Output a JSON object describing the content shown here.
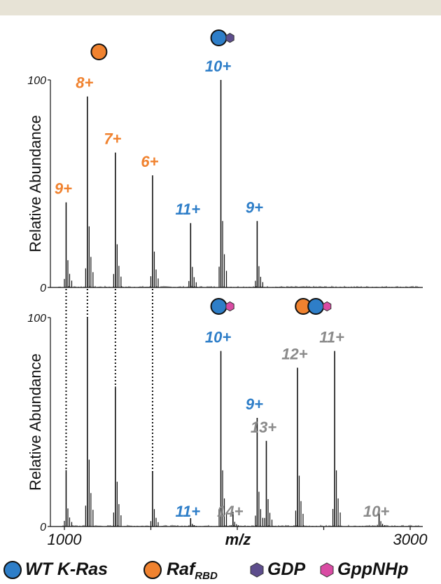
{
  "colors": {
    "wt_kras": "#2e7ec8",
    "raf_rbd": "#f0822f",
    "gdp": "#5d4d8c",
    "gppnhp": "#d94ba3",
    "complex_label": "#8a8a8a",
    "spectrum": "#111111"
  },
  "icons": [
    "wt-kras-circle-icon",
    "raf-rbd-circle-icon",
    "gdp-hexagon-icon",
    "gppnhp-hexagon-icon"
  ],
  "chart_data": [
    {
      "type": "line",
      "panel": "top",
      "ylabel": "Relative Abundance",
      "yticks": [
        "100",
        "0"
      ],
      "ylim": [
        0,
        100
      ],
      "xlim": [
        1000,
        3000
      ],
      "grid": false,
      "peaks": [
        {
          "mz": 1010,
          "intensity": 41,
          "label": "9+",
          "species": "raf_rbd"
        },
        {
          "mz": 1133,
          "intensity": 92,
          "label": "8+",
          "species": "raf_rbd"
        },
        {
          "mz": 1295,
          "intensity": 65,
          "label": "7+",
          "species": "raf_rbd"
        },
        {
          "mz": 1510,
          "intensity": 54,
          "label": "6+",
          "species": "raf_rbd"
        },
        {
          "mz": 1730,
          "intensity": 31,
          "label": "11+",
          "species": "wt_kras_gdp"
        },
        {
          "mz": 1905,
          "intensity": 100,
          "label": "10+",
          "species": "wt_kras_gdp"
        },
        {
          "mz": 2115,
          "intensity": 32,
          "label": "9+",
          "species": "wt_kras_gdp"
        }
      ],
      "groups": [
        {
          "species": "raf_rbd",
          "at_mz": 1200
        },
        {
          "species": "wt_kras_gdp",
          "at_mz": 1905
        }
      ]
    },
    {
      "type": "line",
      "panel": "bottom",
      "ylabel": "Relative Abundance",
      "yticks": [
        "100",
        "0"
      ],
      "ylim": [
        0,
        100
      ],
      "xlim": [
        1000,
        3000
      ],
      "xlabel": "m/z",
      "xticks": [
        "1000",
        "3000"
      ],
      "grid": false,
      "peaks": [
        {
          "mz": 1010,
          "intensity": 27,
          "label": "",
          "species": "raf_rbd"
        },
        {
          "mz": 1133,
          "intensity": 100,
          "label": "",
          "species": "raf_rbd"
        },
        {
          "mz": 1295,
          "intensity": 67,
          "label": "",
          "species": "raf_rbd"
        },
        {
          "mz": 1510,
          "intensity": 26,
          "label": "",
          "species": "raf_rbd"
        },
        {
          "mz": 1730,
          "intensity": 4,
          "label": "11+",
          "species": "wt_kras_gppnhp"
        },
        {
          "mz": 1905,
          "intensity": 84,
          "label": "10+",
          "species": "wt_kras_gppnhp"
        },
        {
          "mz": 1975,
          "intensity": 7,
          "label": "14+",
          "species": "complex"
        },
        {
          "mz": 2115,
          "intensity": 52,
          "label": "9+",
          "species": "wt_kras_gppnhp"
        },
        {
          "mz": 2168,
          "intensity": 41,
          "label": "13+",
          "species": "complex"
        },
        {
          "mz": 2348,
          "intensity": 76,
          "label": "12+",
          "species": "complex"
        },
        {
          "mz": 2563,
          "intensity": 84,
          "label": "11+",
          "species": "complex"
        },
        {
          "mz": 2820,
          "intensity": 8,
          "label": "10+",
          "species": "complex"
        }
      ],
      "groups": [
        {
          "species": "wt_kras_gppnhp",
          "at_mz": 1905
        },
        {
          "species": "complex",
          "at_mz": 2430
        }
      ]
    }
  ],
  "legend": [
    {
      "text": "WT K-Ras",
      "sub": "",
      "icon": "wt-kras-circle-icon",
      "color": "#2e7ec8"
    },
    {
      "text": "Raf",
      "sub": "RBD",
      "icon": "raf-rbd-circle-icon",
      "color": "#f0822f"
    },
    {
      "text": "GDP",
      "sub": "",
      "icon": "gdp-hexagon-icon",
      "color": "#5d4d8c"
    },
    {
      "text": "GppNHp",
      "sub": "",
      "icon": "gppnhp-hexagon-icon",
      "color": "#d94ba3"
    }
  ]
}
